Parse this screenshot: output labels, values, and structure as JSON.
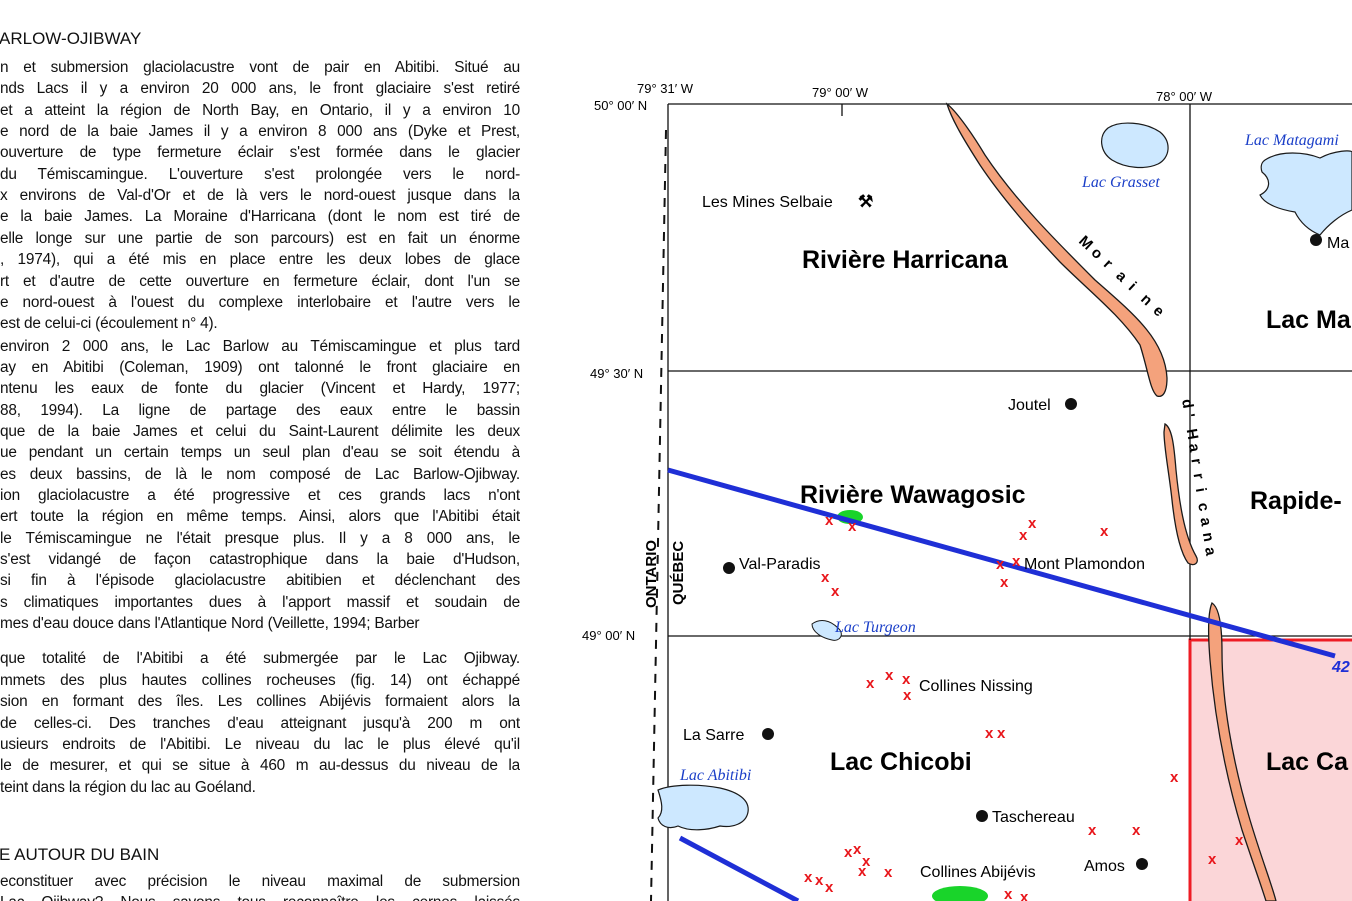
{
  "text_column": {
    "section1_title": "ARLOW-OJIBWAY",
    "section1_lines": [
      "n et submersion glaciolacustre vont de pair en Abitibi.  Situé au",
      "nds Lacs il y a environ 20 000 ans, le front glaciaire s'est retiré",
      "et a atteint la région de North Bay, en Ontario, il y a environ 10",
      "e nord de la baie James il y a environ 8 000  ans (Dyke et Prest,",
      "ouverture de type fermeture éclair s'est formée dans le glacier",
      "du Témiscamingue.  L'ouverture s'est prolongée vers le nord-",
      "x environs de Val-d'Or et de là vers le nord-ouest jusque dans la",
      "e la baie James.  La Moraine d'Harricana (dont le nom est tiré de",
      "elle longe sur une partie de son parcours) est en fait un énorme",
      ", 1974), qui a été mis en place entre les deux lobes de glace",
      "rt et d'autre de cette ouverture en fermeture éclair, dont l'un se",
      "e nord-ouest à l'ouest du complexe interlobaire et l'autre vers le",
      "est de celui-ci (écoulement n° 4).",
      "environ 2 000 ans, le Lac Barlow au Témiscamingue et plus tard",
      "ay en Abitibi (Coleman, 1909) ont talonné le front glaciaire en",
      "ntenu les eaux de fonte du glacier (Vincent et Hardy, 1977;",
      "88, 1994).   La ligne de partage des eaux entre le bassin",
      "que de la baie James et celui du Saint-Laurent délimite les deux",
      "ue pendant un certain temps un seul plan d'eau se soit étendu à",
      "es deux bassins, de là le nom composé de Lac Barlow-Ojibway.",
      "ion glaciolacustre a été progressive et ces grands lacs n'ont",
      "ert toute la région en même temps.  Ainsi, alors que l'Abitibi était",
      "le Témiscamingue ne l'était presque plus.  Il y a 8 000 ans, le",
      " s'est vidangé de façon catastrophique dans la baie d'Hudson,",
      "si fin à l'épisode glaciolacustre abitibien et déclenchant des",
      "s climatiques importantes dues à l'apport massif et soudain de",
      "mes d'eau douce dans l'Atlantique Nord (Veillette, 1994; Barber",
      "que totalité de l'Abitibi a été submergée par le Lac Ojibway.",
      "mmets des plus hautes collines rocheuses (fig. 14) ont échappé",
      "sion en formant des îles.  Les collines Abijévis formaient alors la",
      " de celles-ci.  Des tranches d'eau atteignant jusqu'à 200 m ont",
      "usieurs endroits de l'Abitibi.  Le niveau du lac le plus élevé qu'il",
      "le de mesurer, et qui se situe à 460 m au-dessus du niveau de la",
      "teint dans la région du lac au Goéland."
    ],
    "section2_title": "E AUTOUR DU BAIN",
    "section2_lines": [
      "econstituer avec précision le niveau maximal de submersion",
      "Lac Ojibway?  Nous savons tous reconnaître les cernes laissés"
    ]
  },
  "map": {
    "coords": {
      "lon_7931": "79° 31′ W",
      "lon_7900": "79° 00′ W",
      "lon_7800": "78° 00′ W",
      "lat_5000": "50° 00′ N",
      "lat_4930": "49° 30′ N",
      "lat_4900": "49° 00′ N"
    },
    "provinces": {
      "ontario": "ONTARIO",
      "quebec": "QUÉBEC"
    },
    "regions": {
      "harricana": "Rivière Harricana",
      "lac_ma": "Lac Ma",
      "wawagosic": "Rivière Wawagosic",
      "rapide": "Rapide-",
      "chicobi": "Lac Chicobi",
      "lac_ca": "Lac Ca"
    },
    "lakes": {
      "grasset": "Lac Grasset",
      "matagami": "Lac Matagami",
      "turgeon": "Lac Turgeon",
      "abitibi": "Lac Abitibi"
    },
    "places": {
      "selbaie": "Les Mines Selbaie",
      "mine_symbol": "⚒",
      "ma": "Ma",
      "joutel": "Joutel",
      "val_paradis": "Val-Paradis",
      "mont_plamondon": "Mont Plamondon",
      "collines_nissing": "Collines Nissing",
      "la_sarre": "La Sarre",
      "taschereau": "Taschereau",
      "amos": "Amos",
      "collines_abijevis": "Collines Abijévis"
    },
    "moraine_letters": [
      "M",
      "o",
      "r",
      "a",
      "i",
      "n",
      "e"
    ],
    "harricana_letters": [
      "d",
      "'",
      "H",
      "a",
      "r",
      "r",
      "i",
      "c",
      "a",
      "n",
      "a"
    ],
    "line_label": "42",
    "marker": "x",
    "colors": {
      "moraine": "#f4a27c",
      "moraine_outline": "#1a1a1a",
      "flow_line": "#1f2fd6",
      "marker": "#e8161b",
      "green_patch": "#19d42a",
      "lake_fill": "#cde8ff",
      "lake_label": "#1b3fc8",
      "box_fill": "#fbd6d8",
      "box_stroke": "#ee1c24"
    }
  }
}
